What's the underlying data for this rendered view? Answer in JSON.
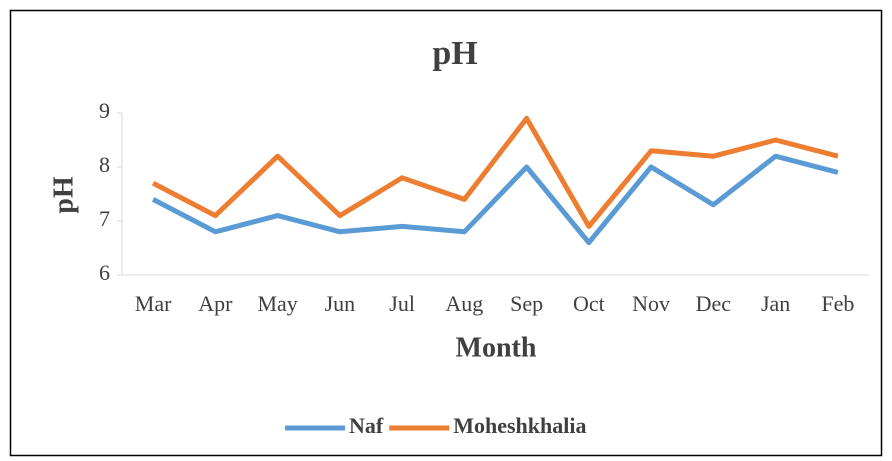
{
  "chart_data": {
    "type": "line",
    "title": "pH",
    "x_label": "Month",
    "y_label": "pH",
    "categories": [
      "Mar",
      "Apr",
      "May",
      "Jun",
      "Jul",
      "Aug",
      "Sep",
      "Oct",
      "Nov",
      "Dec",
      "Jan",
      "Feb"
    ],
    "series": [
      {
        "name": "Naf",
        "color": "#5b9bd5",
        "values": [
          7.4,
          6.8,
          7.1,
          6.8,
          6.9,
          6.8,
          8.0,
          6.6,
          8.0,
          7.3,
          8.2,
          7.9
        ]
      },
      {
        "name": "Moheshkhalia",
        "color": "#ed7d31",
        "values": [
          7.7,
          7.1,
          8.2,
          7.1,
          7.8,
          7.4,
          8.9,
          6.9,
          8.3,
          8.2,
          8.5,
          8.2
        ]
      }
    ],
    "ylim": [
      6,
      9
    ],
    "yticks": [
      6,
      7,
      8,
      9
    ],
    "grid": false,
    "legend": "bottom"
  }
}
